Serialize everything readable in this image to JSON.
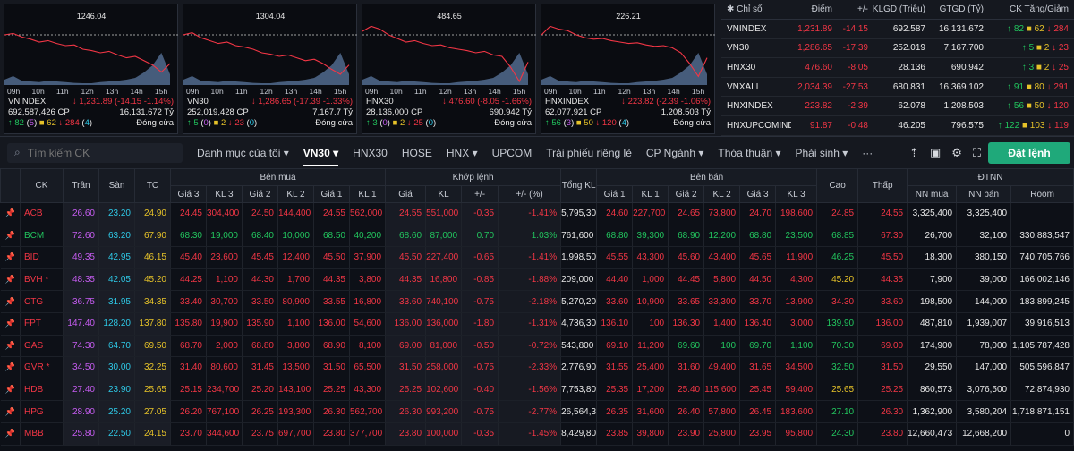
{
  "mini_charts": [
    {
      "name": "VNINDEX",
      "ref_label": "1246.04",
      "volume": "692,587,426 CP",
      "change": "1,231.89 (-14.15 -1.14%)",
      "value": "16,131.672 Tỷ",
      "up": "82",
      "ceil": "5",
      "flat": "62",
      "down": "284",
      "floor": "4",
      "status": "Đóng cửa"
    },
    {
      "name": "VN30",
      "ref_label": "1304.04",
      "volume": "252,019,428 CP",
      "change": "1,286.65 (-17.39 -1.33%)",
      "value": "7,167.7 Tỷ",
      "up": "5",
      "ceil": "0",
      "flat": "2",
      "down": "23",
      "floor": "0",
      "status": "Đóng cửa"
    },
    {
      "name": "HNX30",
      "ref_label": "484.65",
      "volume": "28,136,000 CP",
      "change": "476.60 (-8.05 -1.66%)",
      "value": "690.942 Tỷ",
      "up": "3",
      "ceil": "0",
      "flat": "2",
      "down": "25",
      "floor": "0",
      "status": "Đóng cửa"
    },
    {
      "name": "HNXINDEX",
      "ref_label": "226.21",
      "volume": "62,077,921 CP",
      "change": "223.82 (-2.39 -1.06%)",
      "value": "1,208.503 Tỷ",
      "up": "56",
      "ceil": "3",
      "flat": "50",
      "down": "120",
      "floor": "4",
      "status": "Đóng cửa"
    }
  ],
  "time_labels": [
    "09h",
    "10h",
    "11h",
    "12h",
    "13h",
    "14h",
    "15h"
  ],
  "index_table": {
    "headers": [
      "Chỉ số",
      "Điểm",
      "+/-",
      "KLGD (Triệu)",
      "GTGD (Tỷ)",
      "CK Tăng/Giảm"
    ],
    "rows": [
      {
        "name": "VNINDEX",
        "point": "1,231.89",
        "chg": "-14.15",
        "vol": "692.587",
        "val": "16,131.672",
        "up": "82",
        "flat": "62",
        "down": "284"
      },
      {
        "name": "VN30",
        "point": "1,286.65",
        "chg": "-17.39",
        "vol": "252.019",
        "val": "7,167.700",
        "up": "5",
        "flat": "2",
        "down": "23"
      },
      {
        "name": "HNX30",
        "point": "476.60",
        "chg": "-8.05",
        "vol": "28.136",
        "val": "690.942",
        "up": "3",
        "flat": "2",
        "down": "25"
      },
      {
        "name": "VNXALL",
        "point": "2,034.39",
        "chg": "-27.53",
        "vol": "680.831",
        "val": "16,369.102",
        "up": "91",
        "flat": "80",
        "down": "291"
      },
      {
        "name": "HNXINDEX",
        "point": "223.82",
        "chg": "-2.39",
        "vol": "62.078",
        "val": "1,208.503",
        "up": "56",
        "flat": "50",
        "down": "120"
      },
      {
        "name": "HNXUPCOMINDE",
        "point": "91.87",
        "chg": "-0.48",
        "vol": "46.205",
        "val": "796.575",
        "up": "122",
        "flat": "103",
        "down": "119"
      }
    ]
  },
  "toolbar": {
    "search_placeholder": "Tìm kiếm CK",
    "tabs": [
      "Danh mục của tôi",
      "VN30",
      "HNX30",
      "HOSE",
      "HNX",
      "UPCOM",
      "Trái phiếu riêng lẻ",
      "CP Ngành",
      "Thỏa thuận",
      "Phái sinh"
    ],
    "order_button": "Đặt lệnh"
  },
  "board": {
    "group_headers": {
      "buy": "Bên mua",
      "match": "Khớp lệnh",
      "sell": "Bên bán",
      "foreign": "ĐTNN"
    },
    "col_headers": [
      "CK",
      "Trần",
      "Sàn",
      "TC",
      "Giá 3",
      "KL 3",
      "Giá 2",
      "KL 2",
      "Giá 1",
      "KL 1",
      "Giá",
      "KL",
      "+/-",
      "+/- (%)",
      "Tổng KL",
      "Giá 1",
      "KL 1",
      "Giá 2",
      "KL 2",
      "Giá 3",
      "KL 3",
      "Cao",
      "Thấp",
      "NN mua",
      "NN bán",
      "Room"
    ],
    "rows": [
      [
        "ACB",
        "26.60",
        "23.20",
        "24.90",
        "24.45",
        "304,400",
        "24.50",
        "144,400",
        "24.55",
        "562,000",
        "24.55",
        "551,000",
        "-0.35",
        "-1.41%",
        "5,795,300",
        "24.60",
        "227,700",
        "24.65",
        "73,800",
        "24.70",
        "198,600",
        "24.85",
        "24.55",
        "3,325,400",
        "3,325,400",
        ""
      ],
      [
        "BCM",
        "72.60",
        "63.20",
        "67.90",
        "68.30",
        "19,000",
        "68.40",
        "10,000",
        "68.50",
        "40,200",
        "68.60",
        "87,000",
        "0.70",
        "1.03%",
        "761,600",
        "68.80",
        "39,300",
        "68.90",
        "12,200",
        "68.80",
        "23,500",
        "68.85",
        "67.30",
        "26,700",
        "32,100",
        "330,883,547"
      ],
      [
        "BID",
        "49.35",
        "42.95",
        "46.15",
        "45.40",
        "23,600",
        "45.45",
        "12,400",
        "45.50",
        "37,900",
        "45.50",
        "227,400",
        "-0.65",
        "-1.41%",
        "1,998,500",
        "45.55",
        "43,300",
        "45.60",
        "43,400",
        "45.65",
        "11,900",
        "46.25",
        "45.50",
        "18,300",
        "380,150",
        "740,705,766"
      ],
      [
        "BVH *",
        "48.35",
        "42.05",
        "45.20",
        "44.25",
        "1,100",
        "44.30",
        "1,700",
        "44.35",
        "3,800",
        "44.35",
        "16,800",
        "-0.85",
        "-1.88%",
        "209,000",
        "44.40",
        "1,000",
        "44.45",
        "5,800",
        "44.50",
        "4,300",
        "45.20",
        "44.35",
        "7,900",
        "39,000",
        "166,002,146"
      ],
      [
        "CTG",
        "36.75",
        "31.95",
        "34.35",
        "33.40",
        "30,700",
        "33.50",
        "80,900",
        "33.55",
        "16,800",
        "33.60",
        "740,100",
        "-0.75",
        "-2.18%",
        "5,270,200",
        "33.60",
        "10,900",
        "33.65",
        "33,300",
        "33.70",
        "13,900",
        "34.30",
        "33.60",
        "198,500",
        "144,000",
        "183,899,245"
      ],
      [
        "FPT",
        "147.40",
        "128.20",
        "137.80",
        "135.80",
        "19,900",
        "135.90",
        "1,100",
        "136.00",
        "54,600",
        "136.00",
        "136,000",
        "-1.80",
        "-1.31%",
        "4,736,300",
        "136.10",
        "100",
        "136.30",
        "1,400",
        "136.40",
        "3,000",
        "139.90",
        "136.00",
        "487,810",
        "1,939,007",
        "39,916,513"
      ],
      [
        "GAS",
        "74.30",
        "64.70",
        "69.50",
        "68.70",
        "2,000",
        "68.80",
        "3,800",
        "68.90",
        "8,100",
        "69.00",
        "81,000",
        "-0.50",
        "-0.72%",
        "543,800",
        "69.10",
        "11,200",
        "69.60",
        "100",
        "69.70",
        "1,100",
        "70.30",
        "69.00",
        "174,900",
        "78,000",
        "1,105,787,428"
      ],
      [
        "GVR *",
        "34.50",
        "30.00",
        "32.25",
        "31.40",
        "80,600",
        "31.45",
        "13,500",
        "31.50",
        "65,500",
        "31.50",
        "258,000",
        "-0.75",
        "-2.33%",
        "2,776,900",
        "31.55",
        "25,400",
        "31.60",
        "49,400",
        "31.65",
        "34,500",
        "32.50",
        "31.50",
        "29,550",
        "147,000",
        "505,596,847"
      ],
      [
        "HDB",
        "27.40",
        "23.90",
        "25.65",
        "25.15",
        "234,700",
        "25.20",
        "143,100",
        "25.25",
        "43,300",
        "25.25",
        "102,600",
        "-0.40",
        "-1.56%",
        "7,753,800",
        "25.35",
        "17,200",
        "25.40",
        "115,600",
        "25.45",
        "59,400",
        "25.65",
        "25.25",
        "860,573",
        "3,076,500",
        "72,874,930"
      ],
      [
        "HPG",
        "28.90",
        "25.20",
        "27.05",
        "26.20",
        "767,100",
        "26.25",
        "193,300",
        "26.30",
        "562,700",
        "26.30",
        "993,200",
        "-0.75",
        "-2.77%",
        "26,564,300",
        "26.35",
        "31,600",
        "26.40",
        "57,800",
        "26.45",
        "183,600",
        "27.10",
        "26.30",
        "1,362,900",
        "3,580,204",
        "1,718,871,151"
      ],
      [
        "MBB",
        "25.80",
        "22.50",
        "24.15",
        "23.70",
        "344,600",
        "23.75",
        "697,700",
        "23.80",
        "377,700",
        "23.80",
        "100,000",
        "-0.35",
        "-1.45%",
        "8,429,800",
        "23.85",
        "39,800",
        "23.90",
        "25,800",
        "23.95",
        "95,800",
        "24.30",
        "23.80",
        "12,660,473",
        "12,668,200",
        "0"
      ]
    ]
  },
  "colors": {
    "up": "#22c55e",
    "down": "#f23645",
    "ref": "#e6c229",
    "ceil": "#c55cf0",
    "floor": "#2ec8e6"
  }
}
